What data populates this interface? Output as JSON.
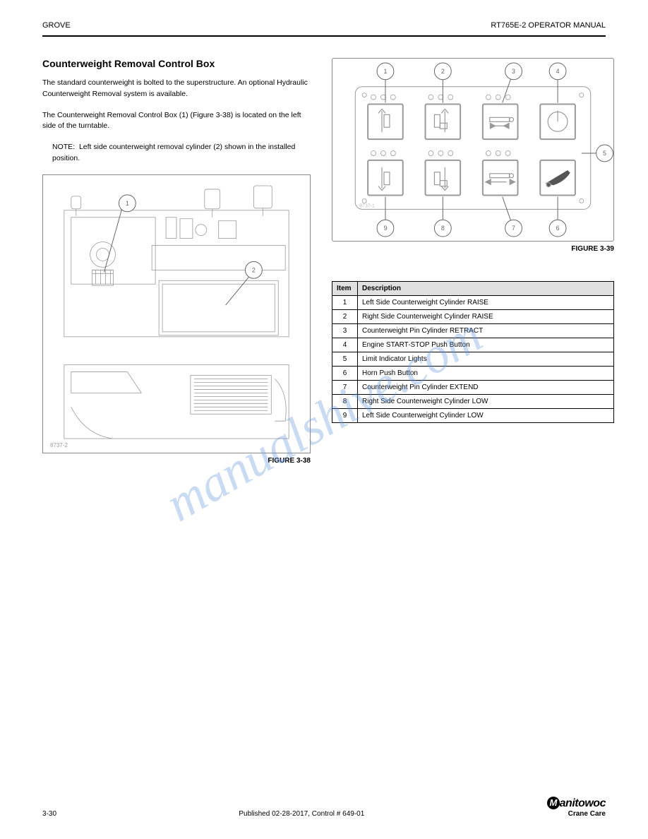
{
  "header": {
    "left": "GROVE",
    "right": "RT765E-2 OPERATOR MANUAL"
  },
  "section": {
    "heading": "Counterweight Removal Control Box",
    "p1": "The standard counterweight is bolted to the superstructure. An optional Hydraulic Counterweight Removal system is available.",
    "p2_part1": "The Counterweight Removal Control Box (1) ",
    "p2_figref": "(Figure 3-38)",
    "p2_part2": " is located on the left side of the turntable.",
    "p3_part1": "NOTE:",
    "p3_part2": "Left side counterweight removal cylinder (2) shown in the installed position.",
    "fig38_ref": "8737-2",
    "fig38_caption": "FIGURE 3-38",
    "fig38_callouts": {
      "c1": "1",
      "c2": "2"
    },
    "fig39_ref": "8737-1",
    "fig39_caption": "FIGURE 3-39",
    "fig39_callouts": {
      "c1": "1",
      "c2": "2",
      "c3": "3",
      "c4": "4",
      "c5": "5",
      "c6": "6",
      "c7": "7",
      "c8": "8",
      "c9": "9"
    }
  },
  "legend": {
    "header_item": "Item",
    "header_desc": "Description",
    "rows": [
      {
        "item": "1",
        "desc": "Left Side Counterweight Cylinder RAISE"
      },
      {
        "item": "2",
        "desc": "Right Side Counterweight Cylinder RAISE"
      },
      {
        "item": "3",
        "desc": "Counterweight Pin Cylinder RETRACT"
      },
      {
        "item": "4",
        "desc": "Engine START-STOP Push Button"
      },
      {
        "item": "5",
        "desc": "Limit Indicator Lights"
      },
      {
        "item": "6",
        "desc": "Horn Push Button"
      },
      {
        "item": "7",
        "desc": "Counterweight Pin Cylinder EXTEND"
      },
      {
        "item": "8",
        "desc": "Right Side Counterweight Cylinder LOW"
      },
      {
        "item": "9",
        "desc": "Left Side Counterweight Cylinder LOW"
      }
    ]
  },
  "footer": {
    "page": "3-30",
    "pub": "Published 02-28-2017, Control # 649-01",
    "logo_main": "anitowoc",
    "logo_sub": "Crane Care"
  },
  "watermark": "manualshive.com"
}
